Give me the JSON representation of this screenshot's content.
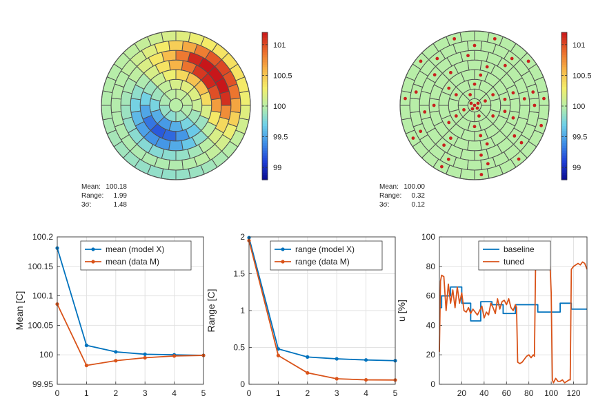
{
  "colormap": [
    "#0a0a8c",
    "#1f3fd6",
    "#3f8fe6",
    "#6fd0e8",
    "#b8eea8",
    "#f4ee6a",
    "#f7b447",
    "#ea6a2b",
    "#c8161a"
  ],
  "chart_data": [
    {
      "type": "heatmap",
      "subtype": "polar-wafer-map",
      "colorbar": {
        "min": 98.8,
        "max": 101.2,
        "ticks": [
          99,
          99.5,
          100,
          100.5,
          101
        ],
        "tick_labels": [
          "99",
          "99.5",
          "100",
          "100.5",
          "101"
        ]
      },
      "rings": 7,
      "field": {
        "mean": 100.0,
        "hot_center_deg": 35,
        "hot_peak": 101.2,
        "cold_center_deg": 240,
        "cold_min": 99.2
      },
      "stats": [
        {
          "label": "Mean:",
          "value": "100.18"
        },
        {
          "label": "Range:",
          "value": "1.99"
        },
        {
          "label": "3σ:",
          "value": "1.48"
        }
      ]
    },
    {
      "type": "heatmap",
      "subtype": "polar-wafer-map-with-sensors",
      "colorbar": {
        "min": 98.8,
        "max": 101.2,
        "ticks": [
          99,
          99.5,
          100,
          100.5,
          101
        ],
        "tick_labels": [
          "99",
          "99.5",
          "100",
          "100.5",
          "101"
        ]
      },
      "rings": 7,
      "field": {
        "value": 100.0
      },
      "sensor_color": "#c8201e",
      "stats": [
        {
          "label": "Mean:",
          "value": "100.00"
        },
        {
          "label": "Range:",
          "value": "0.32"
        },
        {
          "label": "3σ:",
          "value": "0.12"
        }
      ]
    },
    {
      "type": "line",
      "x": [
        0,
        1,
        2,
        3,
        4,
        5
      ],
      "xlim": [
        0,
        5
      ],
      "ylim": [
        99.95,
        100.2
      ],
      "xticks": [
        "0",
        "1",
        "2",
        "3",
        "4",
        "5"
      ],
      "yticks": [
        "99.95",
        "100",
        "100.05",
        "100.1",
        "100.15",
        "100.2"
      ],
      "ytick_values": [
        99.95,
        100,
        100.05,
        100.1,
        100.15,
        100.2
      ],
      "ylabel": "Mean [C]",
      "grid": true,
      "legend": "top-right",
      "series": [
        {
          "name": "mean (model X)",
          "color": "#0072bd",
          "markers": true,
          "values": [
            100.181,
            100.016,
            100.005,
            100.001,
            100.0,
            99.999
          ]
        },
        {
          "name": "mean (data M)",
          "color": "#d95319",
          "markers": true,
          "values": [
            100.086,
            99.982,
            99.99,
            99.995,
            99.998,
            99.999
          ]
        }
      ]
    },
    {
      "type": "line",
      "x": [
        0,
        1,
        2,
        3,
        4,
        5
      ],
      "xlim": [
        0,
        5
      ],
      "ylim": [
        0,
        2
      ],
      "xticks": [
        "0",
        "1",
        "2",
        "3",
        "4",
        "5"
      ],
      "yticks": [
        "0",
        "0.5",
        "1",
        "1.5",
        "2"
      ],
      "ytick_values": [
        0,
        0.5,
        1,
        1.5,
        2
      ],
      "ylabel": "Range [C]",
      "grid": true,
      "legend": "top-right",
      "series": [
        {
          "name": "range (model X)",
          "color": "#0072bd",
          "markers": true,
          "values": [
            1.99,
            0.48,
            0.37,
            0.345,
            0.33,
            0.32
          ]
        },
        {
          "name": "range (data M)",
          "color": "#d95319",
          "markers": true,
          "values": [
            1.95,
            0.39,
            0.155,
            0.075,
            0.06,
            0.058
          ]
        }
      ]
    },
    {
      "type": "line",
      "xlim": [
        0,
        132
      ],
      "ylim": [
        0,
        100
      ],
      "xticks": [
        "20",
        "40",
        "60",
        "80",
        "100",
        "120"
      ],
      "xtick_values": [
        20,
        40,
        60,
        80,
        100,
        120
      ],
      "yticks": [
        "0",
        "20",
        "40",
        "60",
        "80",
        "100"
      ],
      "ytick_values": [
        0,
        20,
        40,
        60,
        80,
        100
      ],
      "ylabel": "u [%]",
      "grid": true,
      "legend": "top-right",
      "series": [
        {
          "name": "baseline",
          "color": "#0072bd",
          "markers": false,
          "x": [
            0,
            2,
            2,
            10,
            10,
            20,
            20,
            28,
            28,
            37,
            37,
            47,
            47,
            57,
            57,
            68,
            68,
            78,
            78,
            88,
            88,
            98,
            98,
            108,
            108,
            118,
            118,
            132
          ],
          "y": [
            52,
            52,
            60,
            60,
            66,
            66,
            55,
            55,
            43,
            43,
            56,
            56,
            54,
            54,
            48,
            48,
            54,
            54,
            54,
            54,
            49,
            49,
            49,
            49,
            55,
            55,
            51,
            51
          ]
        },
        {
          "name": "tuned",
          "color": "#d95319",
          "markers": false,
          "x": [
            0,
            1,
            2,
            4,
            6,
            8,
            10,
            12,
            14,
            16,
            18,
            20,
            22,
            24,
            26,
            28,
            30,
            32,
            34,
            36,
            38,
            40,
            42,
            44,
            46,
            48,
            50,
            52,
            54,
            56,
            58,
            60,
            62,
            64,
            66,
            68,
            69,
            70,
            72,
            74,
            76,
            78,
            80,
            82,
            84,
            85,
            86,
            87,
            88,
            90,
            92,
            94,
            96,
            98,
            99,
            100,
            101,
            102,
            104,
            106,
            108,
            110,
            112,
            114,
            116,
            117,
            118,
            120,
            122,
            124,
            126,
            128,
            130,
            132
          ],
          "y": [
            22,
            70,
            74,
            73,
            50,
            68,
            55,
            64,
            52,
            66,
            55,
            62,
            50,
            49,
            52,
            48,
            51,
            49,
            47,
            50,
            53,
            45,
            49,
            47,
            55,
            52,
            48,
            58,
            51,
            56,
            57,
            54,
            58,
            52,
            50,
            54,
            52,
            15,
            14,
            15,
            17,
            19,
            20,
            18,
            20,
            19,
            80,
            78,
            79,
            80,
            82,
            79,
            80,
            81,
            80,
            62,
            3,
            1,
            4,
            2,
            2,
            3,
            1,
            2,
            3,
            3,
            78,
            80,
            81,
            82,
            81,
            83,
            82,
            78
          ]
        }
      ]
    }
  ]
}
